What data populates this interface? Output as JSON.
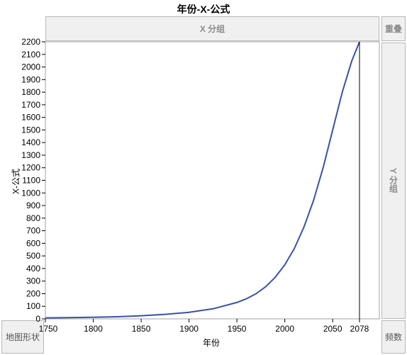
{
  "page_title": "年份-X-公式",
  "drop_zones": {
    "x_group": "X 分组",
    "overlay": "重叠",
    "y_group": "Y 分组",
    "map_shape": "地图形状",
    "freq": "频数"
  },
  "chart_data": {
    "type": "line",
    "title": "年份-X-公式",
    "xlabel": "年份",
    "ylabel": "X-公式",
    "xlim": [
      1750,
      2078
    ],
    "ylim": [
      0,
      2200
    ],
    "x_ticks": [
      "1750",
      "1800",
      "1850",
      "1900",
      "1950",
      "2000",
      "2050",
      "2078"
    ],
    "y_ticks": [
      "0",
      "100",
      "200",
      "300",
      "400",
      "500",
      "600",
      "700",
      "800",
      "900",
      "1000",
      "1100",
      "1200",
      "1300",
      "1400",
      "1500",
      "1600",
      "1700",
      "1800",
      "1900",
      "2000",
      "2100",
      "2200"
    ],
    "reference_line_x": 2078,
    "series": [
      {
        "color": "#3a52a3",
        "x": [
          1750,
          1775,
          1800,
          1825,
          1850,
          1875,
          1900,
          1925,
          1950,
          1960,
          1970,
          1980,
          1990,
          2000,
          2010,
          2020,
          2030,
          2040,
          2050,
          2060,
          2070,
          2078
        ],
        "y": [
          8,
          10,
          13,
          17,
          25,
          36,
          52,
          80,
          130,
          160,
          200,
          255,
          330,
          430,
          560,
          730,
          940,
          1200,
          1500,
          1800,
          2050,
          2200
        ]
      }
    ]
  }
}
